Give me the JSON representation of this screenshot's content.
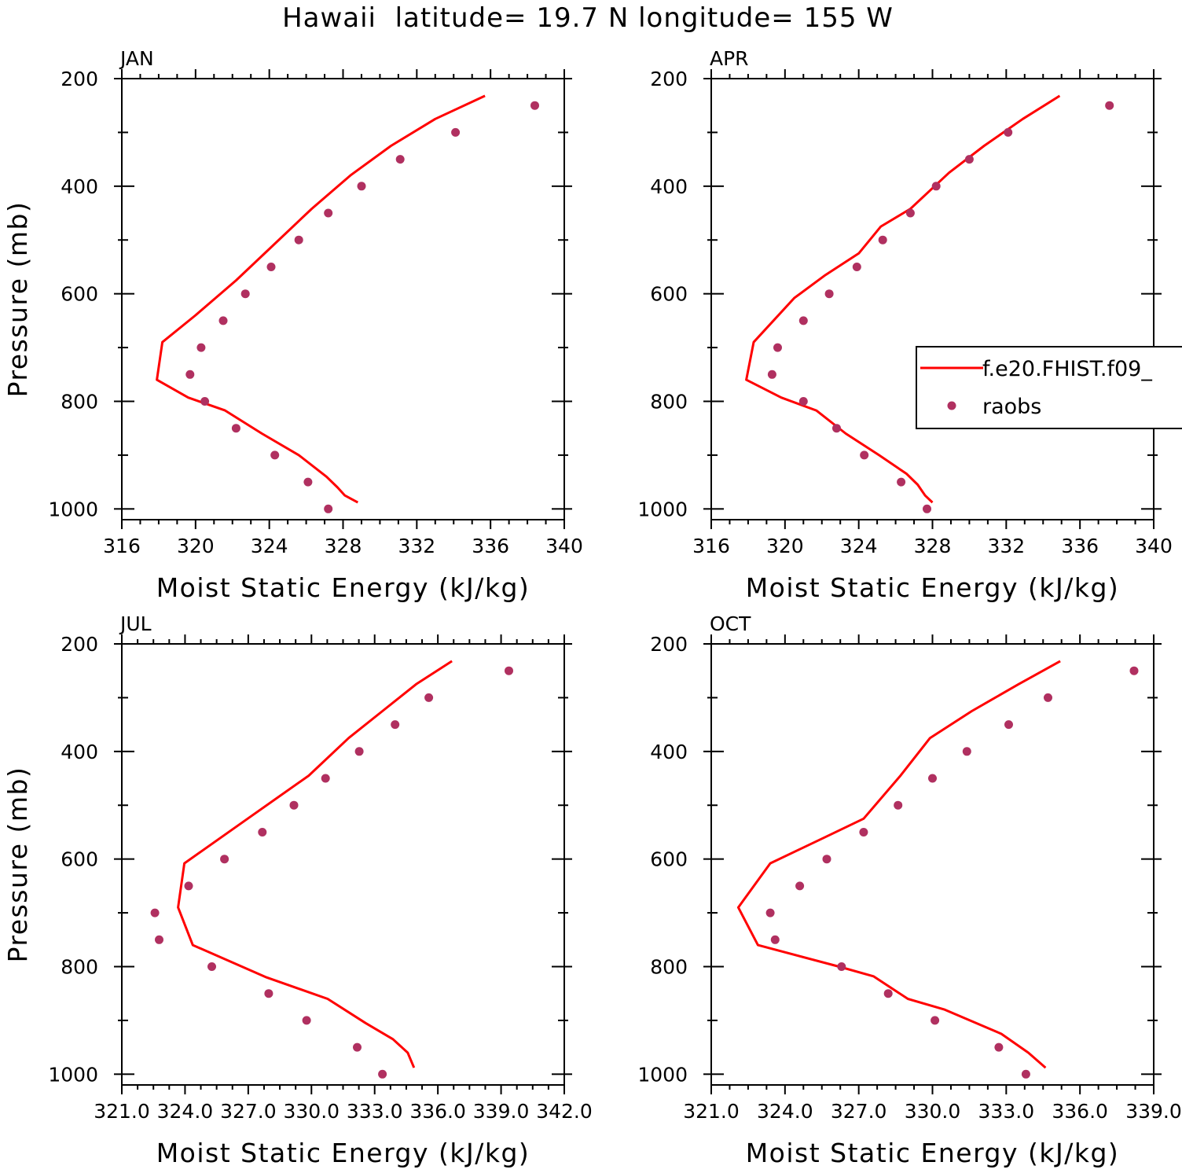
{
  "figure": {
    "title": "Hawaii  latitude= 19.7 N longitude= 155 W"
  },
  "colors": {
    "model": "#ff0000",
    "obs": "#b03060",
    "axes": "#000000"
  },
  "legend": {
    "model_label": "f.e20.FHIST.f09_",
    "obs_label": "raobs"
  },
  "chart_data": [
    {
      "type": "line",
      "panel": "JAN",
      "xlabel": "Moist Static Energy (kJ/kg)",
      "ylabel": "Pressure (mb)",
      "xlim": [
        316,
        340
      ],
      "ylim": [
        1020,
        200
      ],
      "xticks": [
        316,
        320,
        324,
        328,
        332,
        336,
        340
      ],
      "xtick_labels": [
        "316",
        "320",
        "324",
        "328",
        "332",
        "336",
        "340"
      ],
      "yticks": [
        200,
        400,
        600,
        800,
        1000
      ],
      "yticks_minor": [
        300,
        500,
        700,
        900
      ],
      "ytick_labels": [
        "200",
        "400",
        "600",
        "800",
        "1000"
      ],
      "series": [
        {
          "name": "f.e20.FHIST.f09_",
          "kind": "line",
          "x": [
            335.7,
            333.0,
            330.6,
            328.4,
            326.3,
            324.3,
            322.2,
            320.0,
            318.2,
            317.9,
            319.6,
            321.6,
            323.6,
            325.6,
            327.1,
            327.7,
            328.1,
            328.8
          ],
          "y": [
            232,
            275,
            325,
            380,
            442,
            507,
            575,
            640,
            690,
            760,
            793,
            817,
            860,
            900,
            940,
            960,
            975,
            988
          ]
        },
        {
          "name": "raobs",
          "kind": "scatter",
          "x": [
            338.4,
            334.1,
            331.1,
            329.0,
            327.2,
            325.6,
            324.1,
            322.7,
            321.5,
            320.3,
            319.7,
            320.5,
            322.2,
            324.3,
            326.1,
            327.2
          ],
          "y": [
            250,
            300,
            350,
            400,
            450,
            500,
            550,
            600,
            650,
            700,
            750,
            800,
            850,
            900,
            950,
            1000
          ]
        }
      ]
    },
    {
      "type": "line",
      "panel": "APR",
      "xlabel": "Moist Static Energy (kJ/kg)",
      "ylabel": "",
      "xlim": [
        316,
        340
      ],
      "ylim": [
        1020,
        200
      ],
      "xticks": [
        316,
        320,
        324,
        328,
        332,
        336,
        340
      ],
      "xtick_labels": [
        "316",
        "320",
        "324",
        "328",
        "332",
        "336",
        "340"
      ],
      "yticks": [
        200,
        400,
        600,
        800,
        1000
      ],
      "yticks_minor": [
        300,
        500,
        700,
        900
      ],
      "ytick_labels": [
        "200",
        "400",
        "600",
        "800",
        "1000"
      ],
      "series": [
        {
          "name": "f.e20.FHIST.f09_",
          "kind": "line",
          "x": [
            334.9,
            332.9,
            330.8,
            328.9,
            326.8,
            325.2,
            324.0,
            322.2,
            320.5,
            318.3,
            317.9,
            319.8,
            321.7,
            323.3,
            325.1,
            326.6,
            327.2,
            327.6,
            328.0
          ],
          "y": [
            232,
            275,
            325,
            375,
            442,
            475,
            525,
            565,
            608,
            690,
            760,
            793,
            817,
            860,
            900,
            935,
            955,
            975,
            988
          ]
        },
        {
          "name": "raobs",
          "kind": "scatter",
          "x": [
            337.6,
            332.1,
            330.0,
            328.2,
            326.8,
            325.3,
            323.9,
            322.4,
            321.0,
            319.6,
            319.3,
            321.0,
            322.8,
            324.3,
            326.3,
            327.7
          ],
          "y": [
            250,
            300,
            350,
            400,
            450,
            500,
            550,
            600,
            650,
            700,
            750,
            800,
            850,
            900,
            950,
            1000
          ]
        }
      ]
    },
    {
      "type": "line",
      "panel": "JUL",
      "xlabel": "Moist Static Energy (kJ/kg)",
      "ylabel": "Pressure (mb)",
      "xlim": [
        321.03,
        342.03
      ],
      "ylim": [
        1020,
        200
      ],
      "xticks": [
        321.03,
        324.03,
        327.03,
        330.03,
        333.03,
        336.03,
        339.03,
        342.03
      ],
      "xtick_labels": [
        "321.0",
        "324.0",
        "327.0",
        "330.0",
        "333.0",
        "336.0",
        "339.0",
        "342.0"
      ],
      "yticks": [
        200,
        400,
        600,
        800,
        1000
      ],
      "yticks_minor": [
        300,
        500,
        700,
        900
      ],
      "ytick_labels": [
        "200",
        "400",
        "600",
        "800",
        "1000"
      ],
      "series": [
        {
          "name": "f.e20.FHIST.f09_",
          "kind": "line",
          "x": [
            336.7,
            335.0,
            333.4,
            331.8,
            329.9,
            327.0,
            324.0,
            323.7,
            324.4,
            327.9,
            330.8,
            332.6,
            333.9,
            334.6,
            334.9
          ],
          "y": [
            232,
            275,
            325,
            375,
            445,
            525,
            608,
            690,
            760,
            820,
            860,
            905,
            935,
            960,
            988
          ]
        },
        {
          "name": "raobs",
          "kind": "scatter",
          "x": [
            339.4,
            335.6,
            334.0,
            332.3,
            330.7,
            329.2,
            327.7,
            325.9,
            324.2,
            322.6,
            322.8,
            325.3,
            328.0,
            329.8,
            332.2,
            333.4
          ],
          "y": [
            250,
            300,
            350,
            400,
            450,
            500,
            550,
            600,
            650,
            700,
            750,
            800,
            850,
            900,
            950,
            1000
          ]
        }
      ]
    },
    {
      "type": "line",
      "panel": "OCT",
      "xlabel": "Moist Static Energy (kJ/kg)",
      "ylabel": "",
      "xlim": [
        321.0,
        339.0
      ],
      "ylim": [
        1020,
        200
      ],
      "xticks": [
        321,
        324,
        327,
        330,
        333,
        336,
        339
      ],
      "xtick_labels": [
        "321.0",
        "324.0",
        "327.0",
        "330.0",
        "333.0",
        "336.0",
        "339.0"
      ],
      "yticks": [
        200,
        400,
        600,
        800,
        1000
      ],
      "yticks_minor": [
        300,
        500,
        700,
        900
      ],
      "ytick_labels": [
        "200",
        "400",
        "600",
        "800",
        "1000"
      ],
      "series": [
        {
          "name": "f.e20.FHIST.f09_",
          "kind": "line",
          "x": [
            335.2,
            333.5,
            331.6,
            329.9,
            328.7,
            327.2,
            325.6,
            323.4,
            322.1,
            322.9,
            326.2,
            327.6,
            329.0,
            330.5,
            332.8,
            333.9,
            334.6
          ],
          "y": [
            232,
            275,
            325,
            375,
            445,
            525,
            560,
            608,
            690,
            760,
            800,
            818,
            860,
            880,
            925,
            960,
            988
          ]
        },
        {
          "name": "raobs",
          "kind": "scatter",
          "x": [
            338.2,
            334.7,
            333.1,
            331.4,
            330.0,
            328.6,
            327.2,
            325.7,
            324.6,
            323.4,
            323.6,
            326.3,
            328.2,
            330.1,
            332.7,
            333.8
          ],
          "y": [
            250,
            300,
            350,
            400,
            450,
            500,
            550,
            600,
            650,
            700,
            750,
            800,
            850,
            900,
            950,
            1000
          ]
        }
      ]
    }
  ]
}
